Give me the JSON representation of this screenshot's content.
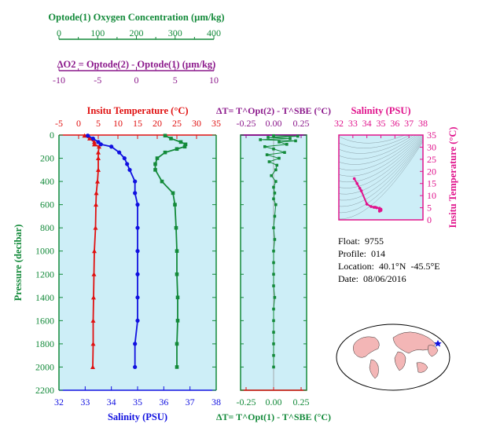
{
  "colors": {
    "green": "#138a3a",
    "purple": "#8c1a8c",
    "red": "#e01010",
    "blue": "#1010e0",
    "magenta": "#e0138c",
    "panel_bg": "#cdeef7",
    "land": "#f3b6b6"
  },
  "oxygen_axis": {
    "title": "Optode(1) Oxygen Concentration (µm/kg)",
    "ticks": [
      "0",
      "100",
      "200",
      "300",
      "400"
    ]
  },
  "delta_o2_axis": {
    "title": "ΔO2 = Optode(2) - Optode(1)   (µm/kg)",
    "ticks": [
      "-10",
      "-5",
      "0",
      "5",
      "10"
    ]
  },
  "info": {
    "float_label": "Float:",
    "float_value": "9755",
    "profile_label": "Profile:",
    "profile_value": "014",
    "location_label": "Location:",
    "location_value": "40.1°N  -45.5°E",
    "date_label": "Date:",
    "date_value": "08/06/2016"
  },
  "chart_data": [
    {
      "type": "line",
      "panel": "main-profile",
      "top_label": "Insitu Temperature (°C)",
      "bottom_label": "Salinity (PSU)",
      "ylabel": "Pressure (decibar)",
      "temperature_ticks": [
        "-5",
        "0",
        "5",
        "10",
        "15",
        "20",
        "25",
        "30",
        "35"
      ],
      "salinity_ticks": [
        "32",
        "33",
        "34",
        "35",
        "36",
        "37",
        "38"
      ],
      "pressure_ticks": [
        "0",
        "200",
        "400",
        "600",
        "800",
        "1000",
        "1200",
        "1400",
        "1600",
        "1800",
        "2000",
        "2200"
      ],
      "temperature_range": [
        -5,
        35
      ],
      "salinity_range": [
        32,
        38
      ],
      "oxygen_range": [
        0,
        400
      ],
      "pressure_range": [
        0,
        2200
      ],
      "series": [
        {
          "name": "Insitu Temperature",
          "axis": "temperature",
          "color": "#e01010",
          "pressure": [
            5,
            30,
            60,
            80,
            100,
            150,
            200,
            300,
            400,
            500,
            600,
            800,
            1000,
            1200,
            1400,
            1600,
            1800,
            2000
          ],
          "values": [
            1.5,
            2.8,
            4.0,
            4.0,
            5.2,
            5.0,
            5.0,
            5.0,
            4.8,
            4.5,
            4.4,
            4.3,
            4.0,
            3.9,
            3.8,
            3.7,
            3.7,
            3.6
          ]
        },
        {
          "name": "Salinity",
          "axis": "salinity",
          "color": "#1010e0",
          "pressure": [
            5,
            30,
            60,
            80,
            100,
            150,
            200,
            250,
            300,
            400,
            500,
            600,
            800,
            1000,
            1200,
            1400,
            1600,
            1800,
            2000
          ],
          "values": [
            33.1,
            33.3,
            33.5,
            33.6,
            34.0,
            34.3,
            34.5,
            34.6,
            34.7,
            34.9,
            34.9,
            35.0,
            35.0,
            35.0,
            35.0,
            35.0,
            35.0,
            34.9,
            34.9
          ]
        },
        {
          "name": "Optode(1) Oxygen Concentration",
          "axis": "oxygen",
          "color": "#138a3a",
          "pressure": [
            5,
            30,
            60,
            80,
            100,
            120,
            150,
            200,
            250,
            300,
            400,
            500,
            600,
            800,
            1000,
            1200,
            1400,
            1600,
            1800,
            2000
          ],
          "values": [
            270,
            285,
            310,
            322,
            320,
            300,
            270,
            250,
            245,
            245,
            262,
            290,
            295,
            298,
            300,
            300,
            302,
            302,
            300,
            300
          ]
        }
      ]
    },
    {
      "type": "scatter",
      "panel": "delta-t-profile",
      "top_label": "ΔT= T^Opt(2) - T^SBE (°C)",
      "bottom_label": "ΔT= T^Opt(1) - T^SBE (°C)",
      "ticks": [
        "-0.25",
        "0.00",
        "0.25"
      ],
      "xlim": [
        -0.3,
        0.3
      ],
      "pressure_range": [
        0,
        2200
      ],
      "series": [
        {
          "name": "ΔT Opt(1)",
          "color": "#138a3a",
          "pressure": [
            5,
            10,
            20,
            30,
            40,
            50,
            60,
            80,
            100,
            120,
            150,
            170,
            200,
            230,
            260,
            300,
            350,
            400,
            450,
            500,
            550,
            600,
            700,
            800,
            900,
            1000,
            1100,
            1200,
            1300,
            1400,
            1500,
            1600,
            1700,
            1800,
            1900,
            2000
          ],
          "values": [
            0.0,
            0.22,
            -0.05,
            0.15,
            -0.12,
            0.2,
            0.05,
            0.12,
            -0.08,
            0.0,
            0.1,
            -0.06,
            0.05,
            -0.04,
            0.03,
            0.02,
            -0.02,
            0.02,
            0.0,
            0.01,
            0.0,
            0.02,
            0.01,
            0.0,
            0.01,
            0.0,
            0.0,
            0.0,
            0.0,
            0.01,
            0.0,
            0.0,
            0.0,
            0.0,
            0.0,
            0.0
          ]
        }
      ]
    },
    {
      "type": "scatter",
      "panel": "ts-diagram",
      "top_label": "Salinity (PSU)",
      "right_label": "Insitu Temperature (°C)",
      "xticks": [
        "32",
        "33",
        "34",
        "35",
        "36",
        "37",
        "38"
      ],
      "yticks": [
        "0",
        "5",
        "10",
        "15",
        "20",
        "25",
        "30",
        "35"
      ],
      "xlim": [
        32,
        38
      ],
      "ylim": [
        0,
        35
      ],
      "series": [
        {
          "name": "T-S",
          "color": "#e0138c",
          "x": [
            33.1,
            33.3,
            33.5,
            33.6,
            34.0,
            34.3,
            34.5,
            34.6,
            34.7,
            34.9,
            34.9,
            35.0,
            35.0,
            35.0,
            35.0,
            34.9,
            34.9
          ],
          "y": [
            17.0,
            15.0,
            13.0,
            12.0,
            6.5,
            5.5,
            5.2,
            5.2,
            5.0,
            4.8,
            4.5,
            4.4,
            4.3,
            4.0,
            3.9,
            3.7,
            3.6
          ]
        }
      ]
    }
  ]
}
